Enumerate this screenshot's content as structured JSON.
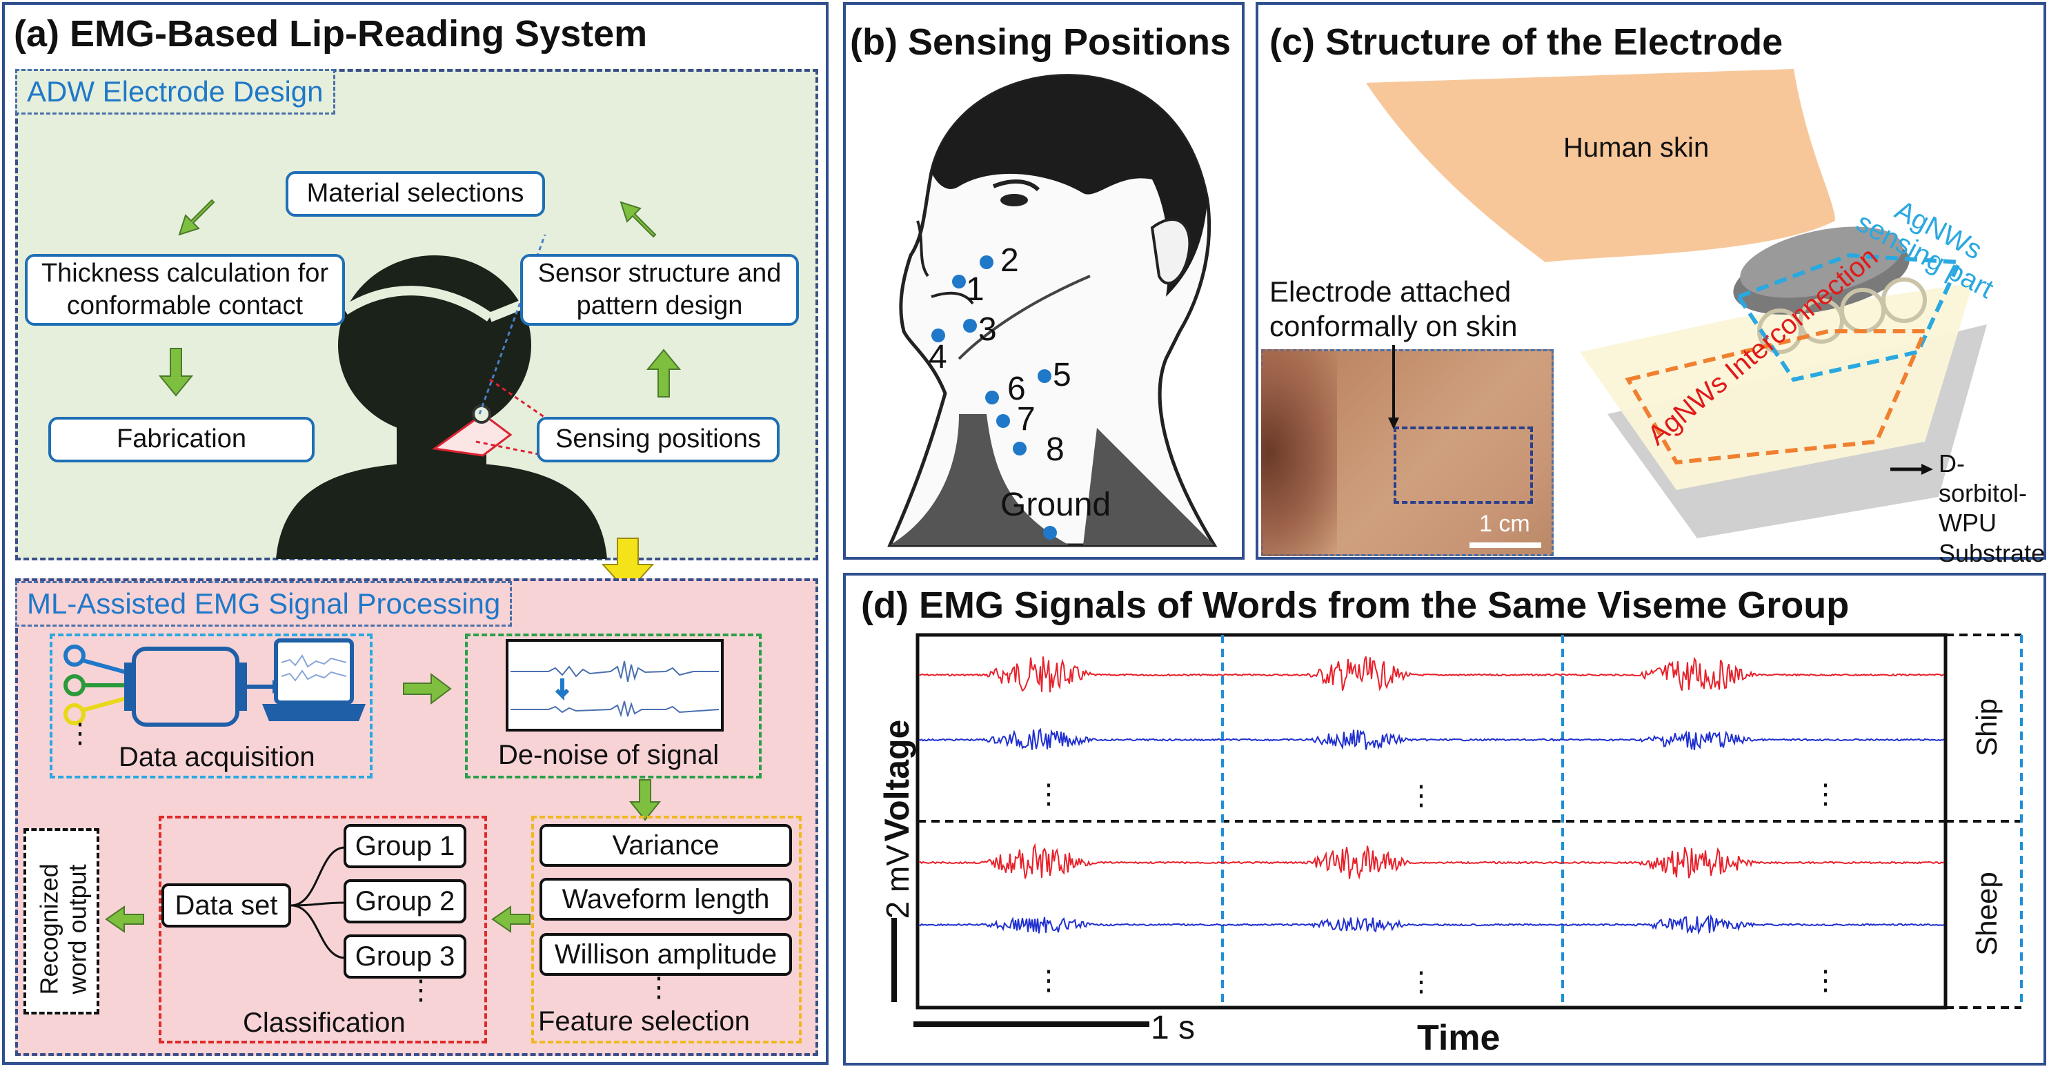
{
  "panel_a": {
    "title": "(a) EMG-Based Lip-Reading System",
    "design": {
      "tag": "ADW Electrode Design",
      "material": "Material selections",
      "thickness": "Thickness calculation for conformable contact",
      "sensor_structure": "Sensor structure and pattern design",
      "fabrication": "Fabrication",
      "sensing_positions": "Sensing positions"
    },
    "ml": {
      "tag": "ML-Assisted EMG Signal Processing",
      "data_acquisition": "Data acquisition",
      "denoise": "De-noise of signal",
      "features": [
        "Variance",
        "Waveform length",
        "Willison amplitude"
      ],
      "feature_selection": "Feature selection",
      "data_set": "Data set",
      "groups": [
        "Group 1",
        "Group 2",
        "Group 3"
      ],
      "classification": "Classification",
      "output": "Recognized word output",
      "ellipsis": "⋮"
    }
  },
  "panel_b": {
    "title": "(b) Sensing Positions",
    "positions": [
      "1",
      "2",
      "3",
      "4",
      "5",
      "6",
      "7",
      "8"
    ],
    "ground": "Ground"
  },
  "panel_c": {
    "title": "(c) Structure of the Electrode",
    "skin": "Human skin",
    "sensing_part": "AgNWs sensing part",
    "interconnection": "AgNWs Interconnection",
    "substrate": "D-sorbitol-WPU Substrate",
    "attached": "Electrode attached conformally on skin",
    "scale": "1 cm"
  },
  "panel_d": {
    "title": "(d) EMG Signals of Words from the Same Viseme Group",
    "ylabel_value": "2 mV",
    "ylabel": "Voltage",
    "xscale": "1 s",
    "xlabel": "Time",
    "words": [
      "Ship",
      "Sheep"
    ],
    "ellipsis": "⋮",
    "colors": {
      "red": "#e8202a",
      "blue": "#1f2fd0",
      "divider": "#1f8fd8"
    }
  }
}
